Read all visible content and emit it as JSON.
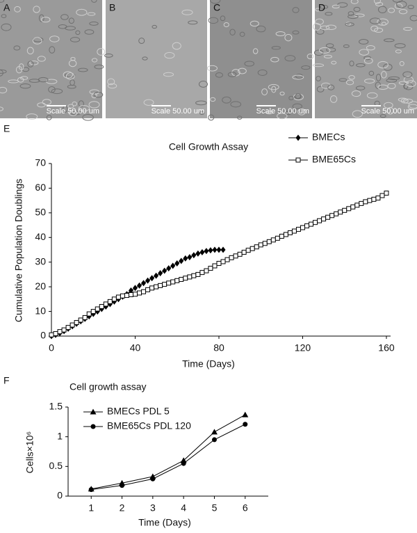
{
  "panels": [
    {
      "label": "A",
      "scale_text": "Scale 50.00 um"
    },
    {
      "label": "B",
      "scale_text": "Scale 50.00 um"
    },
    {
      "label": "C",
      "scale_text": "Scale 50.00 um"
    },
    {
      "label": "D",
      "scale_text": "Scale 50.00 um"
    }
  ],
  "chart_data": [
    {
      "panel_label": "E",
      "type": "line",
      "title": "Cell Growth Assay",
      "x_label": "Time (Days)",
      "y_label": "Cumulative Population Doublings",
      "xlim": [
        0,
        162
      ],
      "xticks": [
        0,
        40,
        80,
        120,
        160
      ],
      "ylim": [
        0,
        70
      ],
      "yticks": [
        0,
        10,
        20,
        30,
        40,
        50,
        60,
        70
      ],
      "legend": "upper right",
      "series": [
        {
          "name": "BMECs",
          "color": "#000000",
          "marker": "diamond",
          "x": [
            0,
            2,
            4,
            6,
            8,
            10,
            12,
            14,
            16,
            18,
            20,
            22,
            24,
            26,
            28,
            30,
            32,
            34,
            36,
            38,
            40,
            42,
            44,
            46,
            48,
            50,
            52,
            54,
            56,
            58,
            60,
            62,
            64,
            66,
            68,
            70,
            72,
            74,
            76,
            78,
            80,
            82
          ],
          "values": [
            0,
            0.5,
            1.2,
            2,
            3,
            4,
            5,
            6,
            7,
            8,
            9,
            10,
            11,
            12,
            13,
            14,
            15,
            16,
            17,
            18.5,
            19.5,
            20.5,
            21.5,
            22.5,
            23.5,
            24.5,
            25.5,
            26.5,
            27.5,
            28.5,
            29.5,
            30.5,
            31.5,
            32,
            32.8,
            33.5,
            34,
            34.5,
            34.8,
            35,
            35,
            35
          ]
        },
        {
          "name": "BME65Cs",
          "color": "#000000",
          "marker": "open-square",
          "x": [
            0,
            2,
            4,
            6,
            8,
            10,
            12,
            14,
            16,
            18,
            20,
            22,
            24,
            26,
            28,
            30,
            32,
            34,
            36,
            38,
            40,
            42,
            44,
            46,
            48,
            50,
            52,
            54,
            56,
            58,
            60,
            62,
            64,
            66,
            68,
            70,
            72,
            74,
            76,
            78,
            80,
            82,
            84,
            86,
            88,
            90,
            92,
            94,
            96,
            98,
            100,
            102,
            104,
            106,
            108,
            110,
            112,
            114,
            116,
            118,
            120,
            122,
            124,
            126,
            128,
            130,
            132,
            134,
            136,
            138,
            140,
            142,
            144,
            146,
            148,
            150,
            152,
            154,
            156,
            158,
            160
          ],
          "values": [
            0.5,
            1,
            1.8,
            2.5,
            3.5,
            4.5,
            5.5,
            6.5,
            7.5,
            9,
            10,
            11,
            12,
            13,
            14,
            15,
            15.8,
            16.3,
            16.5,
            16.8,
            17,
            17.5,
            18,
            18.8,
            19.5,
            20,
            20.5,
            21,
            21.5,
            22,
            22.5,
            23,
            23.5,
            24,
            24.5,
            25,
            25.8,
            26.5,
            27.5,
            28.5,
            29.5,
            30.2,
            31,
            31.8,
            32.5,
            33.2,
            34,
            34.8,
            35.5,
            36.2,
            37,
            37.6,
            38.3,
            39,
            39.7,
            40.5,
            41.2,
            41.9,
            42.6,
            43.3,
            44,
            44.7,
            45.4,
            46.1,
            46.8,
            47.5,
            48.2,
            48.9,
            49.6,
            50.3,
            51,
            51.7,
            52.4,
            53.1,
            53.8,
            54.5,
            55,
            55.5,
            56,
            57,
            58
          ]
        }
      ]
    },
    {
      "panel_label": "F",
      "type": "line",
      "title": "Cell growth assay",
      "x_label": "Time (Days)",
      "y_label": "Cells×10⁶",
      "xlim": [
        0.25,
        6.75
      ],
      "xticks": [
        1,
        2,
        3,
        4,
        5,
        6
      ],
      "ylim": [
        0,
        1.5
      ],
      "yticks": [
        0,
        0.5,
        1,
        1.5
      ],
      "legend": "upper left",
      "series": [
        {
          "name": "BMECs PDL 5",
          "color": "#000000",
          "marker": "triangle",
          "x": [
            1,
            2,
            3,
            4,
            5,
            6
          ],
          "values": [
            0.12,
            0.22,
            0.33,
            0.6,
            1.08,
            1.37
          ]
        },
        {
          "name": "BME65Cs PDL 120",
          "color": "#000000",
          "marker": "circle",
          "x": [
            1,
            2,
            3,
            4,
            5,
            6
          ],
          "values": [
            0.11,
            0.18,
            0.29,
            0.55,
            0.95,
            1.21
          ]
        }
      ]
    }
  ]
}
